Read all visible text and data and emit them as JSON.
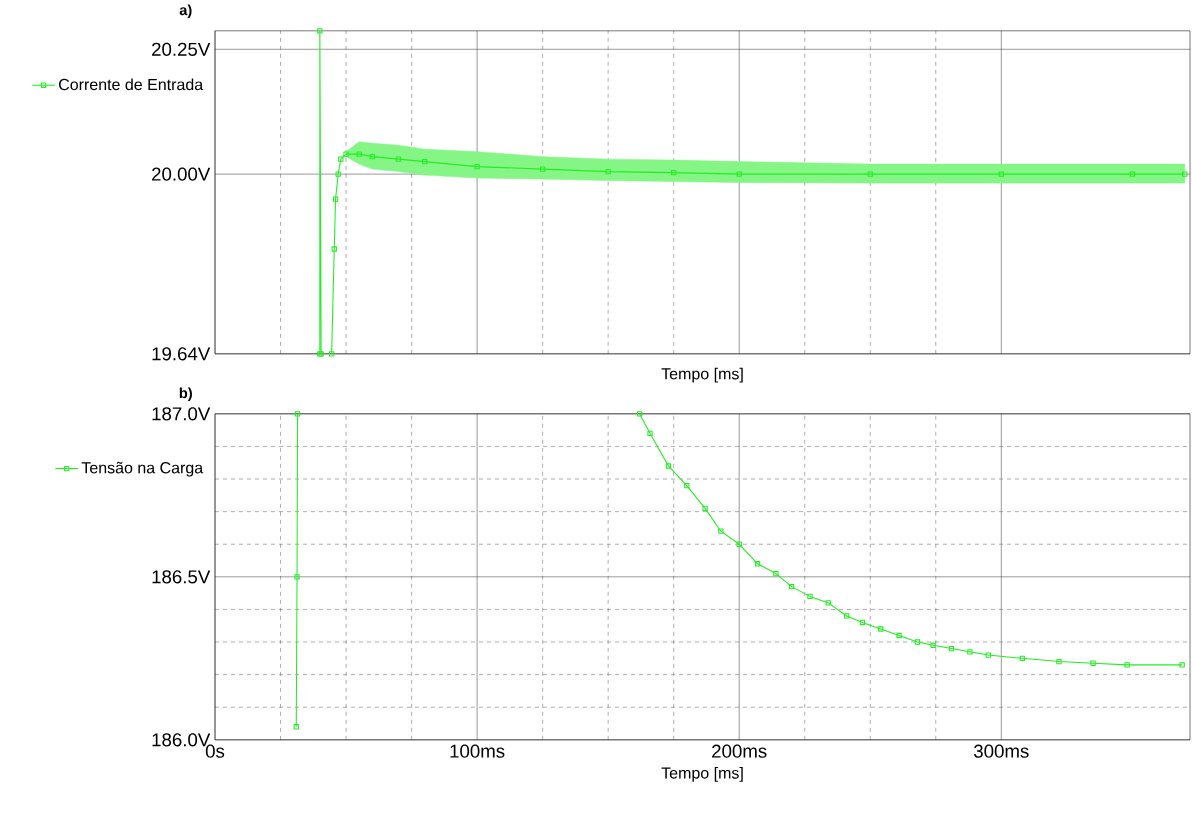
{
  "chart_data": [
    {
      "type": "line",
      "title": "a)",
      "xlabel": "Tempo [ms]",
      "xlim": [
        0,
        372
      ],
      "xticks": [
        0,
        100,
        200,
        300
      ],
      "ylim": [
        19.64,
        20.287
      ],
      "yticks": [
        {
          "value": 19.64,
          "label": "19.64V"
        },
        {
          "value": 20.0,
          "label": "20.00V"
        },
        {
          "value": 20.25,
          "label": "20.25V"
        }
      ],
      "tick_labels": "y",
      "grid": true,
      "legend": "top left",
      "marker": "square",
      "line_style": "solid",
      "series": [
        {
          "name": "Corrente de Entrada",
          "color": "#22ee22",
          "x": [
            40,
            40,
            40.5,
            42,
            44.5,
            45.5,
            46,
            47,
            48,
            50,
            55,
            60,
            70,
            80,
            100,
            125,
            150,
            175,
            200,
            250,
            300,
            350,
            370
          ],
          "values": [
            19.64,
            20.287,
            19.64,
            null,
            19.64,
            19.85,
            19.95,
            20.0,
            20.03,
            20.04,
            20.04,
            20.035,
            20.03,
            20.025,
            20.015,
            20.01,
            20.005,
            20.003,
            20.0,
            20.0,
            20.0,
            20.0,
            20.0
          ],
          "upper": [
            null,
            null,
            null,
            null,
            null,
            null,
            null,
            null,
            null,
            20.045,
            20.065,
            20.062,
            20.058,
            20.05,
            20.045,
            20.035,
            20.03,
            20.028,
            20.025,
            20.02,
            20.02,
            20.02,
            20.02
          ],
          "lower": [
            null,
            null,
            null,
            null,
            null,
            null,
            null,
            null,
            null,
            20.035,
            20.02,
            20.01,
            20.005,
            19.998,
            19.992,
            19.99,
            19.987,
            19.985,
            19.983,
            19.982,
            19.982,
            19.982,
            19.982
          ]
        }
      ]
    },
    {
      "type": "line",
      "title": "b)",
      "xlabel": "Tempo [ms]",
      "xlim": [
        0,
        372
      ],
      "xticks": [
        {
          "value": 0,
          "label": "0s"
        },
        {
          "value": 100,
          "label": "100ms"
        },
        {
          "value": 200,
          "label": "200ms"
        },
        {
          "value": 300,
          "label": "300ms"
        }
      ],
      "ylim": [
        186.0,
        187.0
      ],
      "yticks": [
        {
          "value": 186.0,
          "label": "186.0V"
        },
        {
          "value": 186.5,
          "label": "186.5V"
        },
        {
          "value": 187.0,
          "label": "187.0V"
        }
      ],
      "grid": true,
      "legend": "top left",
      "marker": "square",
      "line_style": "solid",
      "series": [
        {
          "name": "Tensão na Carga",
          "color": "#22ee22",
          "x": [
            31,
            31.3,
            31.5,
            100,
            162,
            166,
            173,
            180,
            187,
            193,
            200,
            207,
            214,
            220,
            227,
            234,
            241,
            247,
            254,
            261,
            268,
            274,
            281,
            288,
            295,
            308,
            322,
            335,
            348,
            369
          ],
          "values": [
            186.04,
            186.5,
            187.0,
            null,
            187.0,
            186.94,
            186.84,
            186.78,
            186.71,
            186.64,
            186.6,
            186.54,
            186.51,
            186.47,
            186.44,
            186.42,
            186.38,
            186.36,
            186.34,
            186.32,
            186.3,
            186.29,
            186.28,
            186.27,
            186.26,
            186.25,
            186.24,
            186.235,
            186.23,
            186.23
          ]
        }
      ]
    }
  ]
}
